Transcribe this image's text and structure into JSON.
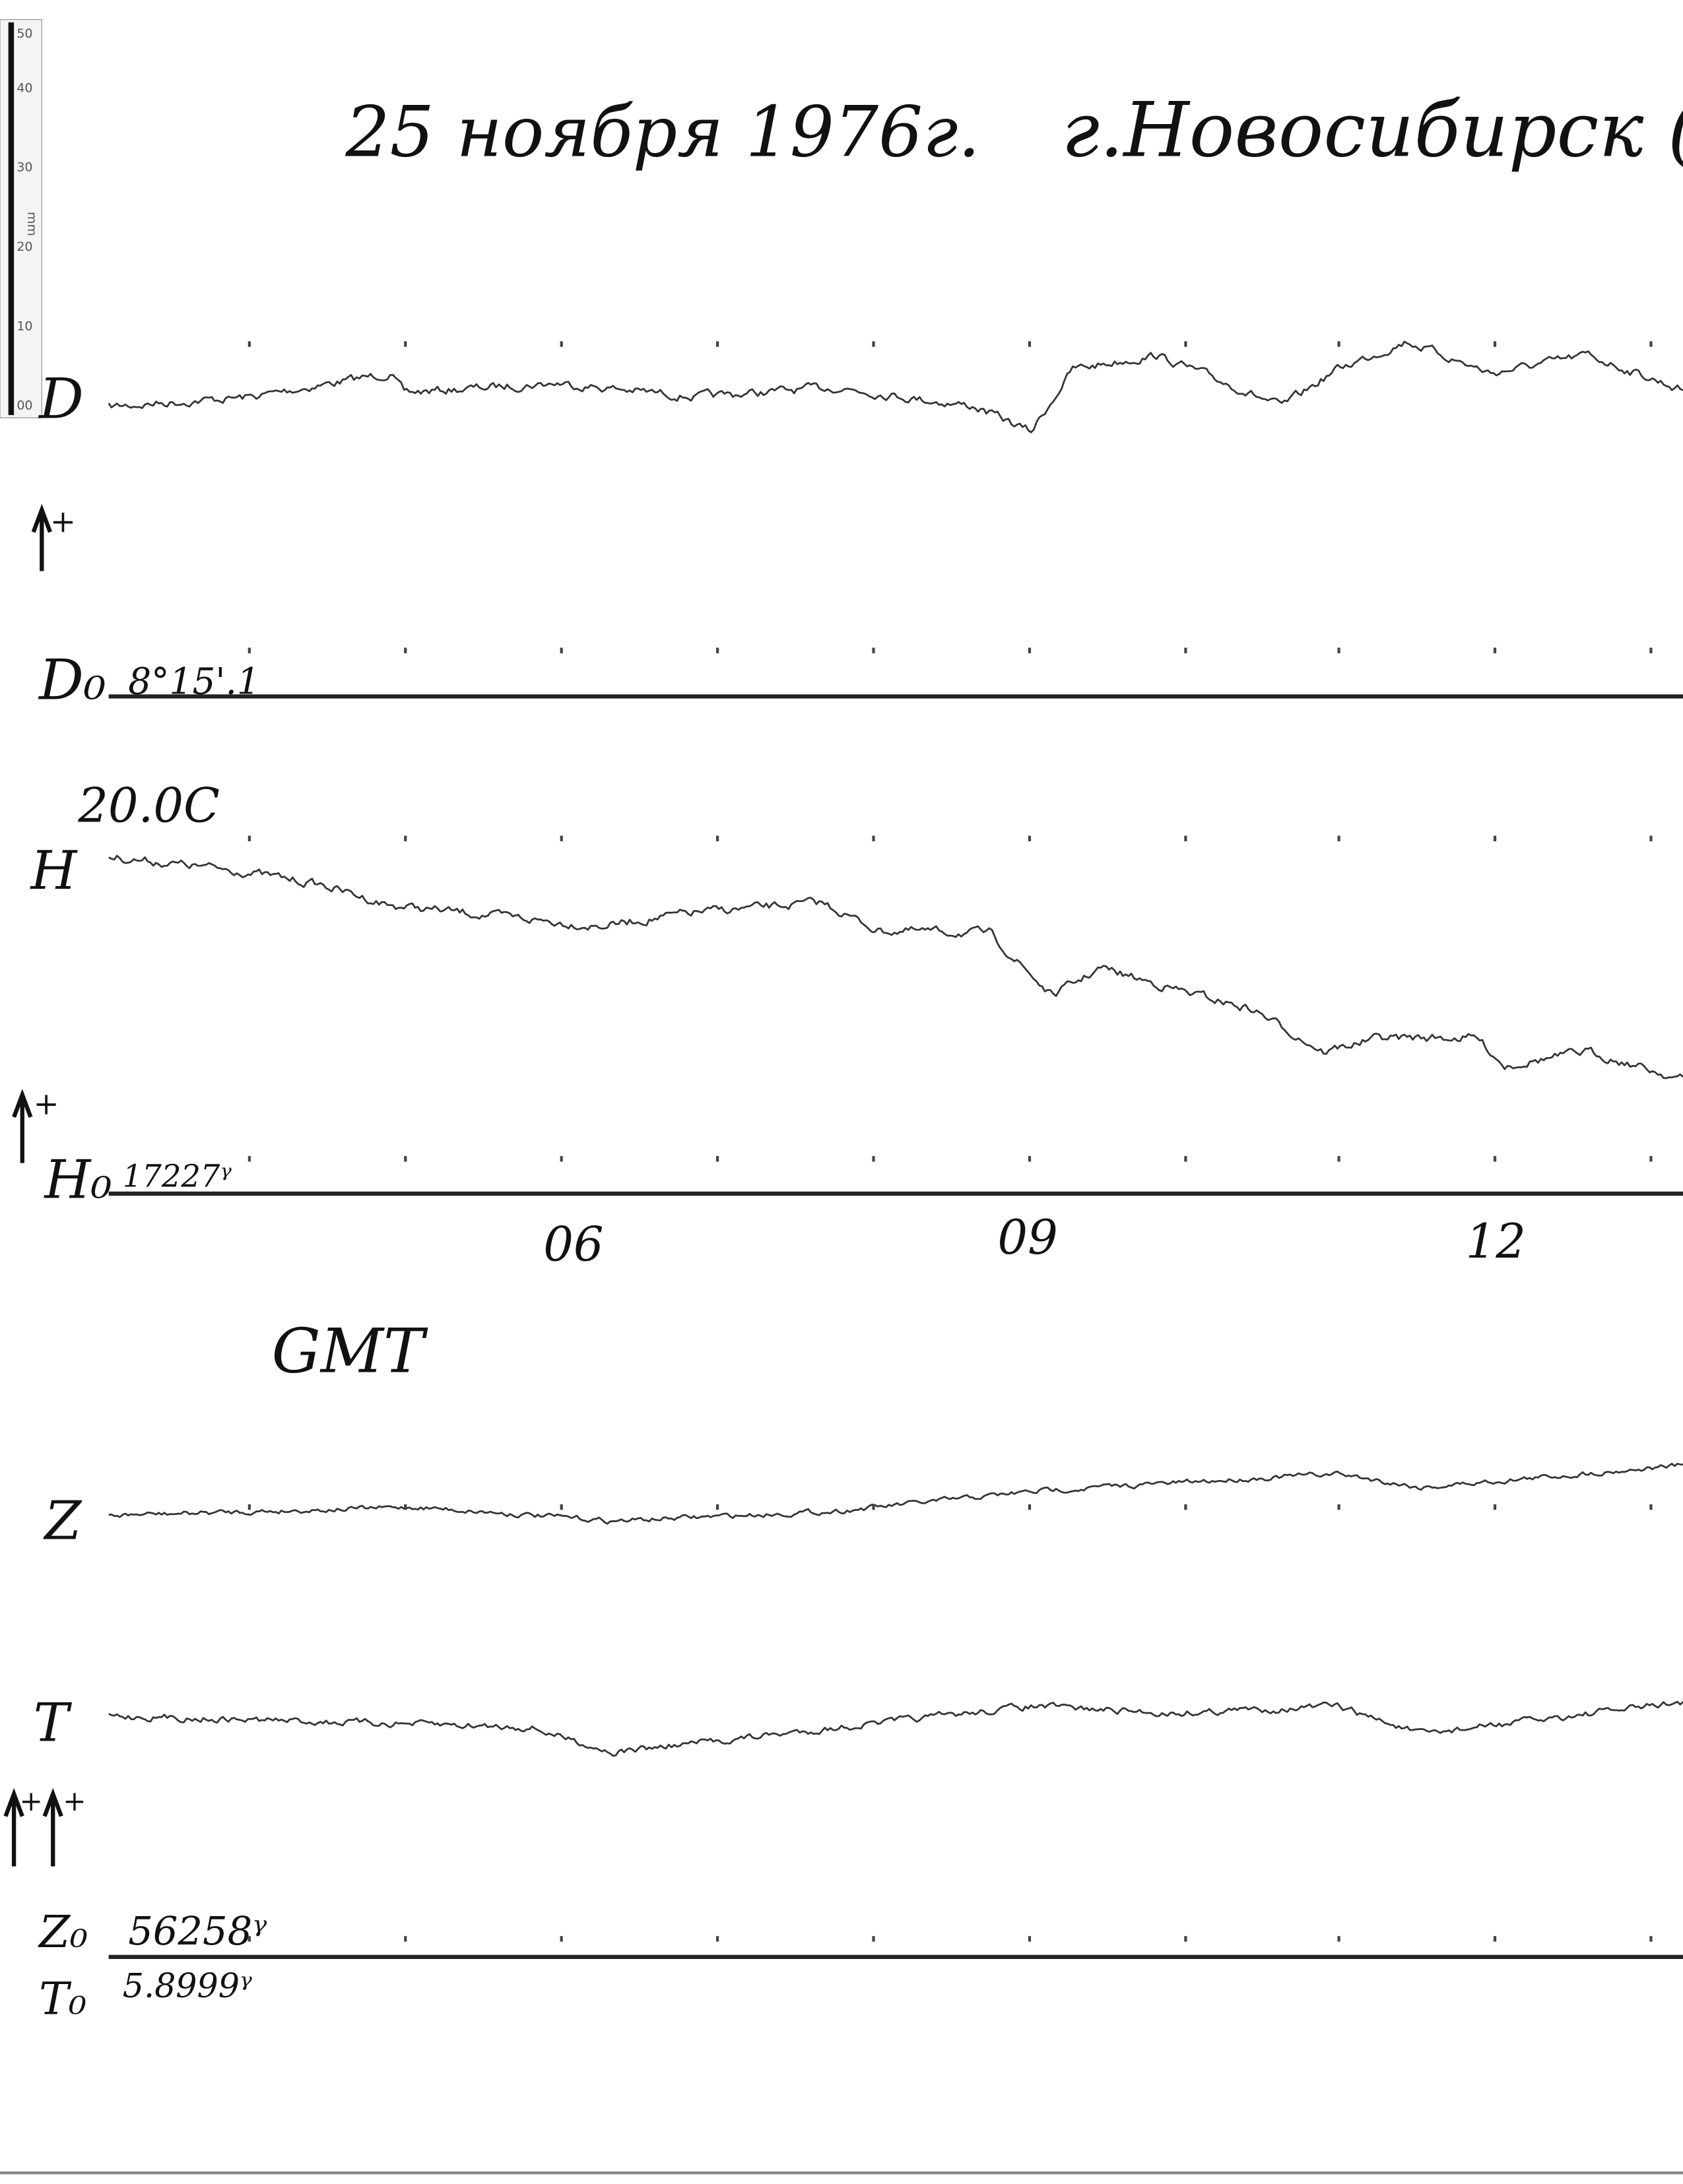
{
  "ruler": {
    "unit": "mm",
    "labels": [
      "50",
      "40",
      "30",
      "20",
      "10",
      "00"
    ]
  },
  "header": {
    "date": "25 ноября 1976г.",
    "place": "г.Новосибирск (Кл"
  },
  "panels": {
    "D": {
      "label": "D",
      "sign": "+",
      "base_label": "D₀",
      "base_value": "8°15'.1"
    },
    "H": {
      "label": "H",
      "temperature": "20.0C",
      "sign": "+",
      "base_label": "H₀",
      "base_value": "17227ᵞ"
    },
    "ZT": {
      "z_label": "Z",
      "t_label": "T",
      "signs": "+ +",
      "z_base_label": "Z₀",
      "z_base_value": "56258ᵞ",
      "t_base_label": "T₀",
      "t_base_value": "5.8999ᵞ"
    }
  },
  "time_axis": {
    "ticks": [
      "06",
      "09",
      "12"
    ],
    "label": "GMT"
  }
}
